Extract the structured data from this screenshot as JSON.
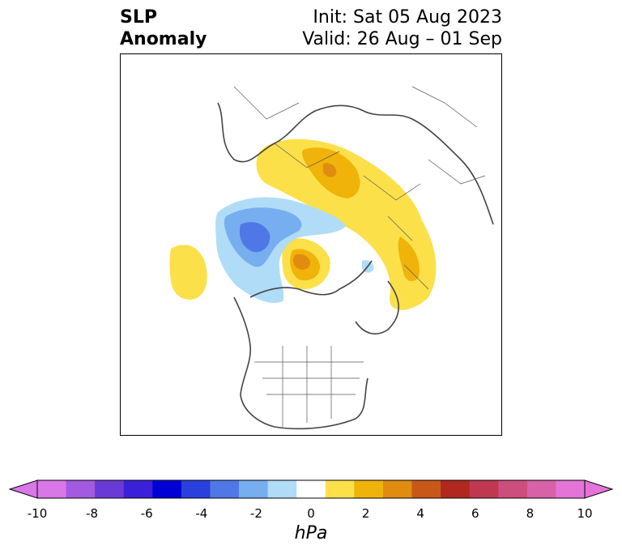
{
  "title": {
    "left_line1": "SLP",
    "left_line2": "Anomaly",
    "init": "Init: Sat 05 Aug 2023",
    "valid": "Valid: 26 Aug – 01 Sep"
  },
  "colorbar": {
    "units": "hPa",
    "ticks": [
      "-10",
      "-8",
      "-6",
      "-4",
      "-2",
      "0",
      "2",
      "4",
      "6",
      "8",
      "10"
    ],
    "colors": [
      "#d977e8",
      "#a35ae0",
      "#6a3ad6",
      "#3a20d8",
      "#0000d6",
      "#2a40dc",
      "#4f78e6",
      "#76aef0",
      "#b0dcf8",
      "#ffffff",
      "#fbe04a",
      "#f0b30a",
      "#e08c10",
      "#c85818",
      "#b02820",
      "#c03850",
      "#cc4e7c",
      "#d862a8",
      "#e474d8"
    ],
    "extend_left_color": "#d977e8",
    "extend_right_color": "#e474d8"
  }
}
